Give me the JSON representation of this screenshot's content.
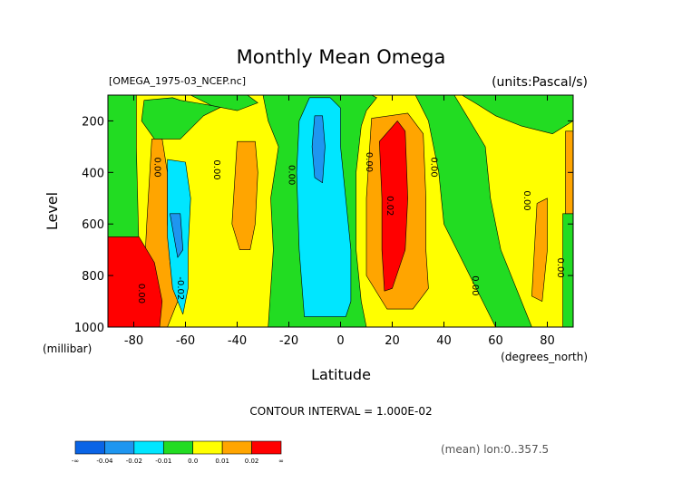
{
  "chart_data": {
    "type": "heatmap",
    "title": "Monthly Mean Omega",
    "file_label": "[OMEGA_1975-03_NCEP.nc]",
    "units_label": "(units:Pascal/s)",
    "xlabel": "Latitude",
    "xunit": "(degrees_north)",
    "ylabel": "Level",
    "yunit": "(millibar)",
    "xlim": [
      -90,
      90
    ],
    "ylim": [
      1000,
      100
    ],
    "x_ticks": [
      -80,
      -60,
      -40,
      -20,
      0,
      20,
      40,
      60,
      80
    ],
    "y_ticks": [
      200,
      400,
      600,
      800,
      1000
    ],
    "x_tick_labels": [
      "-80",
      "-60",
      "-40",
      "-20",
      "0",
      "20",
      "40",
      "60",
      "80"
    ],
    "y_tick_labels": [
      "200",
      "400",
      "600",
      "800",
      "1000"
    ],
    "contour_interval_label": "CONTOUR INTERVAL = 1.000E-02",
    "mean_label": "(mean) lon:0..357.5",
    "contour_labels": [
      {
        "text": "0.00",
        "lat": -72,
        "lev": 380
      },
      {
        "text": "0.00",
        "lat": -49,
        "lev": 390
      },
      {
        "text": "0.00",
        "lat": -20,
        "lev": 410
      },
      {
        "text": "0.00",
        "lat": 10,
        "lev": 360
      },
      {
        "text": "0.02",
        "lat": 18,
        "lev": 530
      },
      {
        "text": "0.00",
        "lat": 35,
        "lev": 380
      },
      {
        "text": "0.00",
        "lat": 71,
        "lev": 510
      },
      {
        "text": "0.00",
        "lat": 51,
        "lev": 840
      },
      {
        "text": "0.00",
        "lat": 84,
        "lev": 770
      },
      {
        "text": "-0.02",
        "lat": -63,
        "lev": 850
      },
      {
        "text": "0.00",
        "lat": -78,
        "lev": 870
      }
    ],
    "levels": [
      {
        "range": "-inf to -0.04",
        "color": "#0a64e6"
      },
      {
        "range": "-0.04 to -0.02",
        "color": "#1e96f0"
      },
      {
        "range": "-0.02 to -0.01",
        "color": "#00e6ff"
      },
      {
        "range": "-0.01 to 0.0",
        "color": "#22dc22"
      },
      {
        "range": "0.0 to 0.01",
        "color": "#ffff00"
      },
      {
        "range": "0.01 to 0.02",
        "color": "#ffa500"
      },
      {
        "range": "0.02 to inf",
        "color": "#ff0000"
      }
    ],
    "colorbar_tick_labels": [
      "-∞",
      "-0.04",
      "-0.02",
      "-0.01",
      "0.0",
      "0.01",
      "0.02",
      "∞"
    ],
    "regions": [
      {
        "level": "0.0 to 0.01",
        "points": [
          [
            -90,
            100
          ],
          [
            90,
            100
          ],
          [
            90,
            1000
          ],
          [
            -90,
            1000
          ]
        ]
      },
      {
        "level": "-0.01 to 0.0",
        "points": [
          [
            -90,
            100
          ],
          [
            -79,
            100
          ],
          [
            -79,
            300
          ],
          [
            -78,
            700
          ],
          [
            -80,
            1000
          ],
          [
            -90,
            1000
          ]
        ]
      },
      {
        "level": "-0.01 to 0.0",
        "points": [
          [
            -76,
            120
          ],
          [
            -65,
            110
          ],
          [
            -62,
            120
          ],
          [
            -56,
            130
          ],
          [
            -50,
            140
          ],
          [
            -46,
            145
          ],
          [
            -53,
            180
          ],
          [
            -62,
            270
          ],
          [
            -72,
            270
          ],
          [
            -77,
            200
          ]
        ]
      },
      {
        "level": "-0.01 to 0.0",
        "points": [
          [
            -58,
            100
          ],
          [
            -36,
            100
          ],
          [
            -32,
            130
          ],
          [
            -40,
            160
          ],
          [
            -50,
            140
          ]
        ]
      },
      {
        "level": "-0.01 to 0.0",
        "points": [
          [
            -30,
            100
          ],
          [
            12,
            100
          ],
          [
            14,
            110
          ],
          [
            10,
            160
          ],
          [
            8,
            220
          ],
          [
            6,
            400
          ],
          [
            6,
            700
          ],
          [
            8,
            900
          ],
          [
            10,
            1000
          ],
          [
            -28,
            1000
          ],
          [
            -26,
            700
          ],
          [
            -27,
            500
          ],
          [
            -24,
            300
          ],
          [
            -28,
            200
          ]
        ]
      },
      {
        "level": "-0.01 to 0.0",
        "points": [
          [
            29,
            100
          ],
          [
            44,
            100
          ],
          [
            50,
            200
          ],
          [
            56,
            300
          ],
          [
            58,
            500
          ],
          [
            62,
            700
          ],
          [
            70,
            900
          ],
          [
            74,
            1000
          ],
          [
            60,
            1000
          ],
          [
            55,
            900
          ],
          [
            50,
            800
          ],
          [
            45,
            700
          ],
          [
            40,
            600
          ],
          [
            38,
            400
          ],
          [
            34,
            200
          ]
        ]
      },
      {
        "level": "-0.01 to 0.0",
        "points": [
          [
            47,
            100
          ],
          [
            90,
            100
          ],
          [
            90,
            200
          ],
          [
            82,
            250
          ],
          [
            70,
            220
          ],
          [
            60,
            180
          ],
          [
            52,
            130
          ]
        ]
      },
      {
        "level": "-0.01 to 0.0",
        "points": [
          [
            86,
            560
          ],
          [
            90,
            560
          ],
          [
            90,
            1000
          ],
          [
            86,
            1000
          ]
        ]
      },
      {
        "level": "0.01 to 0.02",
        "points": [
          [
            -73,
            270
          ],
          [
            -69,
            270
          ],
          [
            -67,
            400
          ],
          [
            -67,
            600
          ],
          [
            -66,
            750
          ],
          [
            -63,
            900
          ],
          [
            -67,
            1000
          ],
          [
            -75,
            1000
          ],
          [
            -76,
            800
          ],
          [
            -75,
            600
          ]
        ]
      },
      {
        "level": "0.01 to 0.02",
        "points": [
          [
            -40,
            280
          ],
          [
            -33,
            280
          ],
          [
            -32,
            400
          ],
          [
            -33,
            600
          ],
          [
            -35,
            700
          ],
          [
            -39,
            700
          ],
          [
            -42,
            600
          ]
        ]
      },
      {
        "level": "0.01 to 0.02",
        "points": [
          [
            12,
            190
          ],
          [
            26,
            170
          ],
          [
            32,
            250
          ],
          [
            33,
            500
          ],
          [
            33,
            700
          ],
          [
            34,
            850
          ],
          [
            28,
            930
          ],
          [
            18,
            930
          ],
          [
            10,
            800
          ],
          [
            10,
            500
          ]
        ]
      },
      {
        "level": "0.01 to 0.02",
        "points": [
          [
            76,
            520
          ],
          [
            80,
            500
          ],
          [
            80,
            700
          ],
          [
            78,
            900
          ],
          [
            74,
            880
          ]
        ]
      },
      {
        "level": "0.01 to 0.02",
        "points": [
          [
            87,
            240
          ],
          [
            90,
            240
          ],
          [
            90,
            560
          ],
          [
            87,
            560
          ]
        ]
      },
      {
        "level": "0.02 to inf",
        "points": [
          [
            -90,
            650
          ],
          [
            -78,
            650
          ],
          [
            -72,
            750
          ],
          [
            -69,
            900
          ],
          [
            -70,
            1000
          ],
          [
            -90,
            1000
          ]
        ]
      },
      {
        "level": "0.02 to inf",
        "points": [
          [
            15,
            280
          ],
          [
            22,
            200
          ],
          [
            25,
            240
          ],
          [
            26,
            500
          ],
          [
            25,
            700
          ],
          [
            20,
            850
          ],
          [
            17,
            860
          ],
          [
            16,
            700
          ],
          [
            16,
            500
          ]
        ]
      },
      {
        "level": "-0.02 to -0.01",
        "points": [
          [
            -67,
            350
          ],
          [
            -60,
            360
          ],
          [
            -58,
            500
          ],
          [
            -59,
            700
          ],
          [
            -59,
            850
          ],
          [
            -61,
            950
          ],
          [
            -65,
            850
          ],
          [
            -67,
            650
          ],
          [
            -67,
            450
          ]
        ]
      },
      {
        "level": "-0.02 to -0.01",
        "points": [
          [
            -12,
            110
          ],
          [
            -4,
            110
          ],
          [
            0,
            150
          ],
          [
            0,
            300
          ],
          [
            2,
            500
          ],
          [
            4,
            700
          ],
          [
            4,
            900
          ],
          [
            2,
            960
          ],
          [
            -14,
            960
          ],
          [
            -16,
            700
          ],
          [
            -17,
            400
          ],
          [
            -16,
            200
          ]
        ]
      },
      {
        "level": "-0.04 to -0.02",
        "points": [
          [
            -66,
            560
          ],
          [
            -62,
            560
          ],
          [
            -61,
            700
          ],
          [
            -63,
            730
          ]
        ]
      },
      {
        "level": "-0.04 to -0.02",
        "points": [
          [
            -10,
            180
          ],
          [
            -7,
            180
          ],
          [
            -6,
            300
          ],
          [
            -7,
            440
          ],
          [
            -10,
            420
          ],
          [
            -11,
            300
          ]
        ]
      }
    ]
  }
}
